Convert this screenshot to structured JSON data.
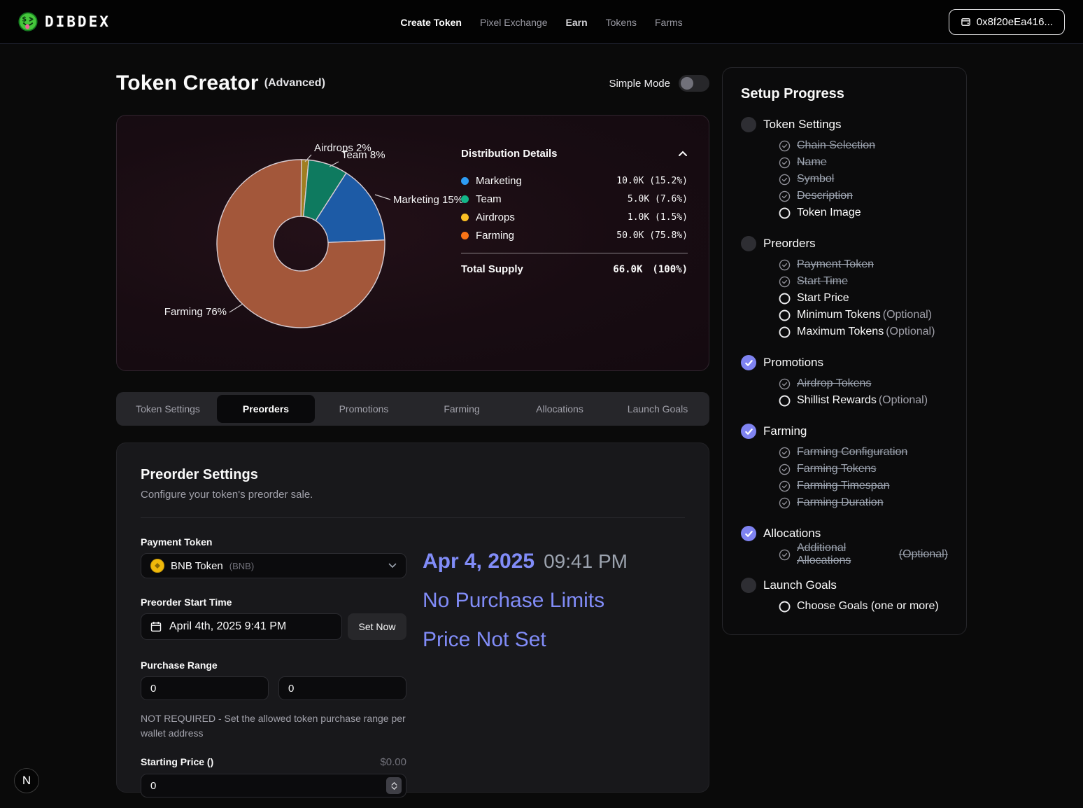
{
  "nav": {
    "brand": "DIBDEX",
    "links": [
      {
        "label": "Create Token",
        "style": "active"
      },
      {
        "label": "Pixel Exchange",
        "style": "plain"
      },
      {
        "label": "Earn",
        "style": "em"
      },
      {
        "label": "Tokens",
        "style": "plain"
      },
      {
        "label": "Farms",
        "style": "plain"
      }
    ],
    "wallet_address": "0x8f20eEa416..."
  },
  "page": {
    "title": "Token Creator",
    "title_suffix": "(Advanced)",
    "mode_toggle_label": "Simple Mode"
  },
  "chart_data": {
    "type": "donut",
    "panel_title": "Distribution Details",
    "slices": [
      {
        "name": "Marketing",
        "amount": "10.0K",
        "pct": 15.2,
        "display_pct": "15.2%",
        "callout": "Marketing 15%",
        "slice_color": "#1d5ba6",
        "dot_color": "#2d9cf4"
      },
      {
        "name": "Team",
        "amount": "5.0K",
        "pct": 7.6,
        "display_pct": "7.6%",
        "callout": "Team 8%",
        "slice_color": "#0e7a5f",
        "dot_color": "#12b789"
      },
      {
        "name": "Airdrops",
        "amount": "1.0K",
        "pct": 1.5,
        "display_pct": "1.5%",
        "callout": "Airdrops 2%",
        "slice_color": "#a07e20",
        "dot_color": "#fbbf24"
      },
      {
        "name": "Farming",
        "amount": "50.0K",
        "pct": 75.8,
        "display_pct": "75.8%",
        "callout": "Farming 76%",
        "slice_color": "#a3573a",
        "dot_color": "#f97316"
      }
    ],
    "draw_order": [
      "Airdrops",
      "Team",
      "Marketing",
      "Farming"
    ],
    "total_label": "Total Supply",
    "total_amount": "66.0K",
    "total_pct": "(100%)"
  },
  "tabs": {
    "items": [
      "Token Settings",
      "Preorders",
      "Promotions",
      "Farming",
      "Allocations",
      "Launch Goals"
    ],
    "active": "Preorders"
  },
  "form": {
    "title": "Preorder Settings",
    "subtitle": "Configure your token's preorder sale.",
    "payment_token_label": "Payment Token",
    "payment_token_value": "BNB Token",
    "payment_token_symbol": "(BNB)",
    "start_time_label": "Preorder Start Time",
    "start_time_value": "April 4th, 2025 9:41 PM",
    "set_now_label": "Set Now",
    "purchase_range_label": "Purchase Range",
    "purchase_min": "0",
    "purchase_max": "0",
    "purchase_help": "NOT REQUIRED - Set the allowed token purchase range per wallet address",
    "starting_price_label": "Starting Price ()",
    "starting_price_display": "$0.00",
    "starting_price_value": "0",
    "summary": {
      "date": "Apr 4, 2025",
      "time": "09:41 PM",
      "line2": "No Purchase Limits",
      "line3": "Price Not Set"
    }
  },
  "progress": {
    "title": "Setup Progress",
    "sections": [
      {
        "label": "Token Settings",
        "state": "incomplete",
        "items": [
          {
            "label": "Chain Selection",
            "done": true
          },
          {
            "label": "Name",
            "done": true
          },
          {
            "label": "Symbol",
            "done": true
          },
          {
            "label": "Description",
            "done": true
          },
          {
            "label": "Token Image",
            "done": false
          }
        ]
      },
      {
        "label": "Preorders",
        "state": "incomplete",
        "items": [
          {
            "label": "Payment Token",
            "done": true
          },
          {
            "label": "Start Time",
            "done": true
          },
          {
            "label": "Start Price",
            "done": false
          },
          {
            "label": "Minimum Tokens",
            "optional": "(Optional)",
            "done": false
          },
          {
            "label": "Maximum Tokens",
            "optional": "(Optional)",
            "done": false
          }
        ]
      },
      {
        "label": "Promotions",
        "state": "complete",
        "items": [
          {
            "label": "Airdrop Tokens",
            "done": true
          },
          {
            "label": "Shillist Rewards",
            "optional": "(Optional)",
            "done": false
          }
        ]
      },
      {
        "label": "Farming",
        "state": "complete",
        "items": [
          {
            "label": "Farming Configuration",
            "done": true
          },
          {
            "label": "Farming Tokens",
            "done": true
          },
          {
            "label": "Farming Timespan",
            "done": true
          },
          {
            "label": "Farming Duration",
            "done": true
          }
        ]
      },
      {
        "label": "Allocations",
        "state": "complete",
        "items": [
          {
            "label": "Additional Allocations",
            "optional": "(Optional)",
            "done": true
          }
        ]
      },
      {
        "label": "Launch Goals",
        "state": "incomplete",
        "items": [
          {
            "label": "Choose Goals (one or more)",
            "done": false
          }
        ]
      }
    ]
  },
  "dev_badge": "N",
  "colors": {
    "accent_purple": "#818cf8",
    "complete_check": "#7f83f1",
    "muted_text": "#9ca3af",
    "card_bg": "#18181b",
    "chart_card_bg": "#1d1016"
  }
}
